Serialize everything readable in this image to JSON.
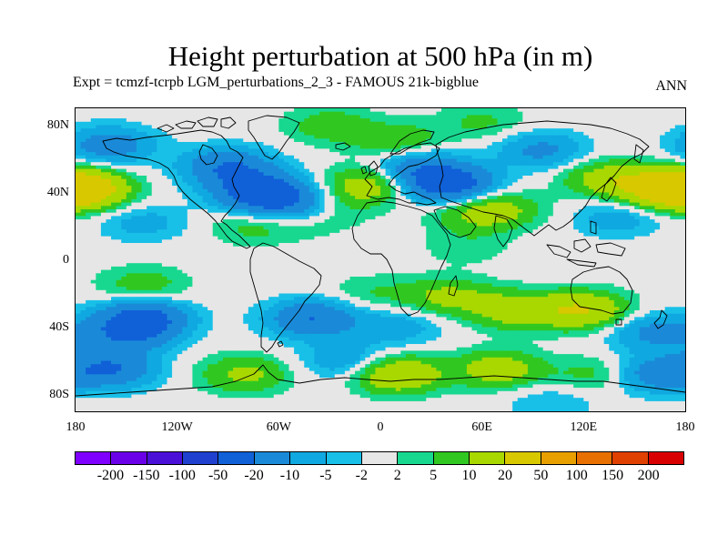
{
  "title": "Height perturbation at 500 hPa (in m)",
  "subtitle_left": "Expt = tcmzf-tcrpb    LGM_perturbations_2_3 - FAMOUS 21k-bigblue",
  "subtitle_right": "ANN",
  "y_ticks": [
    "80N",
    "40N",
    "0",
    "40S",
    "80S"
  ],
  "y_tick_values": [
    80,
    40,
    0,
    -40,
    -80
  ],
  "x_ticks": [
    "180",
    "120W",
    "60W",
    "0",
    "60E",
    "120E",
    "180"
  ],
  "x_tick_values": [
    -180,
    -120,
    -60,
    0,
    60,
    120,
    180
  ],
  "colorbar": {
    "colors": [
      "#7f00ff",
      "#6a00e8",
      "#4a10d8",
      "#2040d0",
      "#1060d8",
      "#1a8ad8",
      "#10a8e0",
      "#18c0e8",
      "#e6e6e6",
      "#18d890",
      "#30c820",
      "#a8d800",
      "#d8c800",
      "#e8a000",
      "#e87000",
      "#e04000",
      "#d80000"
    ],
    "labels": [
      "-200",
      "-150",
      "-100",
      "-50",
      "-20",
      "-10",
      "-5",
      "-2",
      "2",
      "5",
      "10",
      "20",
      "50",
      "100",
      "150",
      "200"
    ]
  },
  "chart_data": {
    "type": "heatmap",
    "title": "Height perturbation at 500 hPa (in m)",
    "units": "m",
    "level": "500 hPa",
    "season": "ANN",
    "lon_range": [
      -180,
      180
    ],
    "lat_range": [
      -90,
      90
    ],
    "levels": [
      -200,
      -150,
      -100,
      -50,
      -20,
      -10,
      -5,
      -2,
      2,
      5,
      10,
      20,
      50,
      100,
      150,
      200
    ],
    "features": [
      {
        "lon": -160,
        "lat": 68,
        "value": -15
      },
      {
        "lon": -90,
        "lat": 55,
        "value": -20
      },
      {
        "lon": -70,
        "lat": 40,
        "value": -30
      },
      {
        "lon": -50,
        "lat": 32,
        "value": -15
      },
      {
        "lon": 40,
        "lat": 45,
        "value": -30
      },
      {
        "lon": 20,
        "lat": 55,
        "value": -15
      },
      {
        "lon": 95,
        "lat": 65,
        "value": -12
      },
      {
        "lon": -175,
        "lat": 42,
        "value": 25
      },
      {
        "lon": 170,
        "lat": 42,
        "value": 25
      },
      {
        "lon": 135,
        "lat": 48,
        "value": 15
      },
      {
        "lon": -5,
        "lat": 45,
        "value": 15
      },
      {
        "lon": 10,
        "lat": 70,
        "value": 10
      },
      {
        "lon": -30,
        "lat": 80,
        "value": 8
      },
      {
        "lon": 60,
        "lat": 82,
        "value": 6
      },
      {
        "lon": 70,
        "lat": 30,
        "value": 10
      },
      {
        "lon": 55,
        "lat": 28,
        "value": 8
      },
      {
        "lon": -75,
        "lat": 20,
        "value": 7
      },
      {
        "lon": -40,
        "lat": 25,
        "value": 6
      },
      {
        "lon": -25,
        "lat": 35,
        "value": 5
      },
      {
        "lon": 140,
        "lat": 25,
        "value": -8
      },
      {
        "lon": -140,
        "lat": 22,
        "value": -7
      },
      {
        "lon": 50,
        "lat": 8,
        "value": 4
      },
      {
        "lon": -140,
        "lat": -35,
        "value": -25
      },
      {
        "lon": -150,
        "lat": -45,
        "value": -15
      },
      {
        "lon": -40,
        "lat": -35,
        "value": -20
      },
      {
        "lon": 10,
        "lat": -40,
        "value": -8
      },
      {
        "lon": 160,
        "lat": -43,
        "value": -12
      },
      {
        "lon": -20,
        "lat": -60,
        "value": -10
      },
      {
        "lon": 40,
        "lat": -22,
        "value": 12
      },
      {
        "lon": 80,
        "lat": -30,
        "value": 15
      },
      {
        "lon": 120,
        "lat": -30,
        "value": 20
      },
      {
        "lon": -140,
        "lat": -15,
        "value": 8
      },
      {
        "lon": -5,
        "lat": -20,
        "value": 5
      },
      {
        "lon": -80,
        "lat": -68,
        "value": 12
      },
      {
        "lon": 10,
        "lat": -68,
        "value": 20
      },
      {
        "lon": 70,
        "lat": -65,
        "value": 15
      },
      {
        "lon": 130,
        "lat": -68,
        "value": 8
      },
      {
        "lon": -160,
        "lat": -65,
        "value": -20
      },
      {
        "lon": 160,
        "lat": -68,
        "value": -15
      },
      {
        "lon": 100,
        "lat": -85,
        "value": -5
      }
    ]
  }
}
